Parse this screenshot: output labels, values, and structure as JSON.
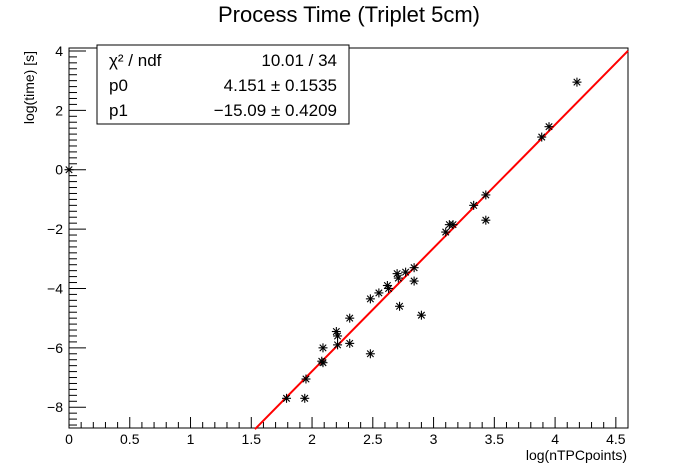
{
  "chart_data": {
    "type": "scatter",
    "title": "Process Time (Triplet 5cm)",
    "xlabel": "log(nTPCpoints)",
    "ylabel": "log(time) [s]",
    "xlim": [
      0,
      4.6
    ],
    "ylim": [
      -8.7,
      4.1
    ],
    "x_ticks": [
      "0",
      "0.5",
      "1",
      "1.5",
      "2",
      "2.5",
      "3",
      "3.5",
      "4",
      "4.5"
    ],
    "y_ticks": [
      "4",
      "2",
      "0",
      "−2",
      "−4",
      "−6",
      "−8"
    ],
    "marker": "asterisk",
    "marker_color": "#000000",
    "fit_color": "#ff0000",
    "grid": false,
    "stats_box": {
      "row1": {
        "label": "χ² / ndf",
        "value": "10.01 / 34"
      },
      "row2": {
        "label": "p0",
        "value": "4.151 ± 0.1535"
      },
      "row3": {
        "label": "p1",
        "value": "−15.09 ± 0.4209"
      }
    },
    "fit": {
      "p1": -15.09,
      "p0": 4.151,
      "x_from": 1.53,
      "x_to": 4.6
    },
    "points": [
      {
        "x": 0.0,
        "y": 0.0
      },
      {
        "x": 1.79,
        "y": -7.7
      },
      {
        "x": 1.94,
        "y": -7.7
      },
      {
        "x": 1.95,
        "y": -7.05
      },
      {
        "x": 2.08,
        "y": -6.45
      },
      {
        "x": 2.09,
        "y": -6.0
      },
      {
        "x": 2.09,
        "y": -6.5
      },
      {
        "x": 2.2,
        "y": -5.45
      },
      {
        "x": 2.21,
        "y": -5.6
      },
      {
        "x": 2.21,
        "y": -5.9
      },
      {
        "x": 2.31,
        "y": -5.0
      },
      {
        "x": 2.31,
        "y": -5.85
      },
      {
        "x": 2.48,
        "y": -4.35
      },
      {
        "x": 2.48,
        "y": -6.2
      },
      {
        "x": 2.55,
        "y": -4.15
      },
      {
        "x": 2.62,
        "y": -3.9
      },
      {
        "x": 2.63,
        "y": -4.0
      },
      {
        "x": 2.7,
        "y": -3.5
      },
      {
        "x": 2.71,
        "y": -3.65
      },
      {
        "x": 2.72,
        "y": -4.6
      },
      {
        "x": 2.77,
        "y": -3.45
      },
      {
        "x": 2.84,
        "y": -3.3
      },
      {
        "x": 2.84,
        "y": -3.75
      },
      {
        "x": 2.9,
        "y": -4.9
      },
      {
        "x": 3.1,
        "y": -2.1
      },
      {
        "x": 3.13,
        "y": -1.85
      },
      {
        "x": 3.16,
        "y": -1.85
      },
      {
        "x": 3.33,
        "y": -1.2
      },
      {
        "x": 3.43,
        "y": -0.85
      },
      {
        "x": 3.43,
        "y": -1.7
      },
      {
        "x": 3.89,
        "y": 1.1
      },
      {
        "x": 3.95,
        "y": 1.45
      },
      {
        "x": 4.18,
        "y": 2.95
      }
    ]
  }
}
